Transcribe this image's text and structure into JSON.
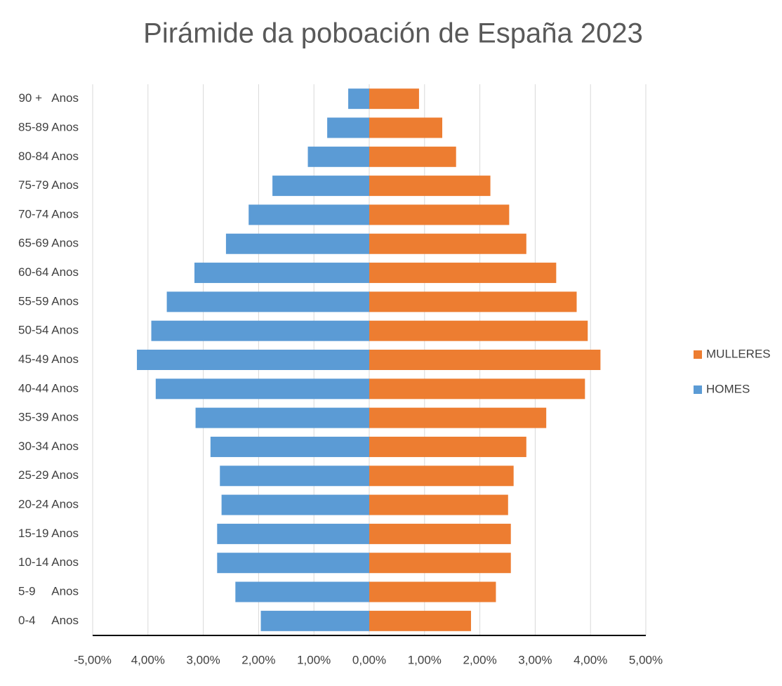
{
  "chart_data": {
    "type": "bar",
    "orientation": "horizontal",
    "title": "Pirámide da poboación de España 2023",
    "categories": [
      "90 +   Anos",
      "85-89 Anos",
      "80-84 Anos",
      "75-79 Anos",
      "70-74 Anos",
      "65-69 Anos",
      "60-64 Anos",
      "55-59 Anos",
      "50-54 Anos",
      "45-49 Anos",
      "40-44 Anos",
      "35-39 Anos",
      "30-34 Anos",
      "25-29 Anos",
      "20-24 Anos",
      "15-19 Anos",
      "10-14 Anos",
      "5-9     Anos",
      "0-4     Anos"
    ],
    "series": [
      {
        "name": "MULLERES",
        "color": "#ed7d31",
        "values": [
          0.9,
          1.32,
          1.57,
          2.19,
          2.53,
          2.84,
          3.38,
          3.75,
          3.95,
          4.18,
          3.9,
          3.2,
          2.84,
          2.61,
          2.51,
          2.56,
          2.56,
          2.29,
          1.84
        ]
      },
      {
        "name": "HOMES",
        "color": "#5b9bd5",
        "values": [
          -0.38,
          -0.76,
          -1.11,
          -1.75,
          -2.18,
          -2.59,
          -3.16,
          -3.66,
          -3.94,
          -4.2,
          -3.86,
          -3.14,
          -2.87,
          -2.7,
          -2.67,
          -2.75,
          -2.75,
          -2.42,
          -1.96
        ]
      }
    ],
    "xlim": [
      -5,
      5
    ],
    "xticks": [
      {
        "value": -5,
        "label": "-5,00%"
      },
      {
        "value": -4,
        "label": "4,00%"
      },
      {
        "value": -3,
        "label": "3,00%"
      },
      {
        "value": -2,
        "label": "2,00%"
      },
      {
        "value": -1,
        "label": "1,00%"
      },
      {
        "value": 0,
        "label": "0,00%"
      },
      {
        "value": 1,
        "label": "1,00%"
      },
      {
        "value": 2,
        "label": "2,00%"
      },
      {
        "value": 3,
        "label": "3,00%"
      },
      {
        "value": 4,
        "label": "4,00%"
      },
      {
        "value": 5,
        "label": "5,00%"
      }
    ],
    "grid": true,
    "legend": "right"
  }
}
